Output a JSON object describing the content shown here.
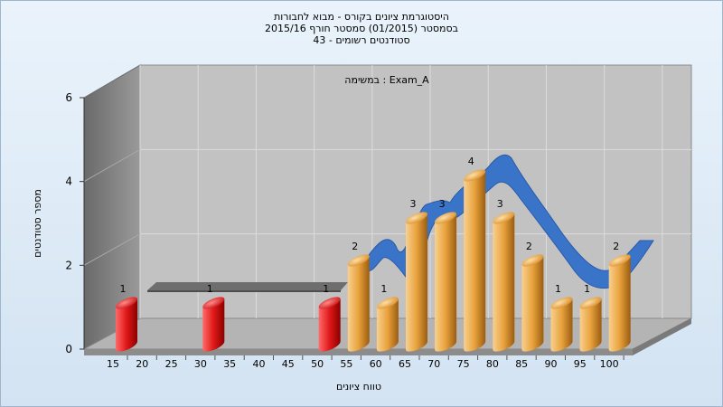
{
  "chart_data": {
    "type": "bar",
    "title_lines": [
      "היסטוגרמת ציונים בקורס - מבוא לחבורות",
      "בסמסטר  (01/2015)  סמסטר חורף 2015/16",
      "סטודנטים רשומים - 43"
    ],
    "annotation": "במשימה : Exam_A",
    "xlabel": "טווח ציונים",
    "ylabel": "מספר סטודנטים",
    "categories": [
      "15",
      "20",
      "25",
      "30",
      "35",
      "40",
      "45",
      "50",
      "55",
      "60",
      "65",
      "70",
      "75",
      "80",
      "85",
      "90",
      "95",
      "100"
    ],
    "bars": [
      {
        "x": 15,
        "value": 1,
        "color": "red"
      },
      {
        "x": 30,
        "value": 1,
        "color": "red"
      },
      {
        "x": 50,
        "value": 1,
        "color": "red"
      },
      {
        "x": 55,
        "value": 2,
        "color": "orange"
      },
      {
        "x": 60,
        "value": 1,
        "color": "orange"
      },
      {
        "x": 65,
        "value": 3,
        "color": "orange"
      },
      {
        "x": 70,
        "value": 3,
        "color": "orange"
      },
      {
        "x": 75,
        "value": 4,
        "color": "orange"
      },
      {
        "x": 80,
        "value": 3,
        "color": "orange"
      },
      {
        "x": 85,
        "value": 2,
        "color": "orange"
      },
      {
        "x": 90,
        "value": 1,
        "color": "orange"
      },
      {
        "x": 95,
        "value": 1,
        "color": "orange"
      },
      {
        "x": 100,
        "value": 2,
        "color": "orange"
      }
    ],
    "yticks": [
      "0",
      "2",
      "4",
      "6"
    ],
    "ylim": [
      0,
      6
    ],
    "grid": true,
    "colors": {
      "red_bar": "#e01818",
      "orange_bar": "#e8a23c",
      "ribbon": "#3a74c8",
      "gray_ribbon": "#6e6e6e",
      "back_wall": "#c2c2c2",
      "side_wall": "#7f7f7f",
      "floor": "#b4b4b4"
    }
  }
}
